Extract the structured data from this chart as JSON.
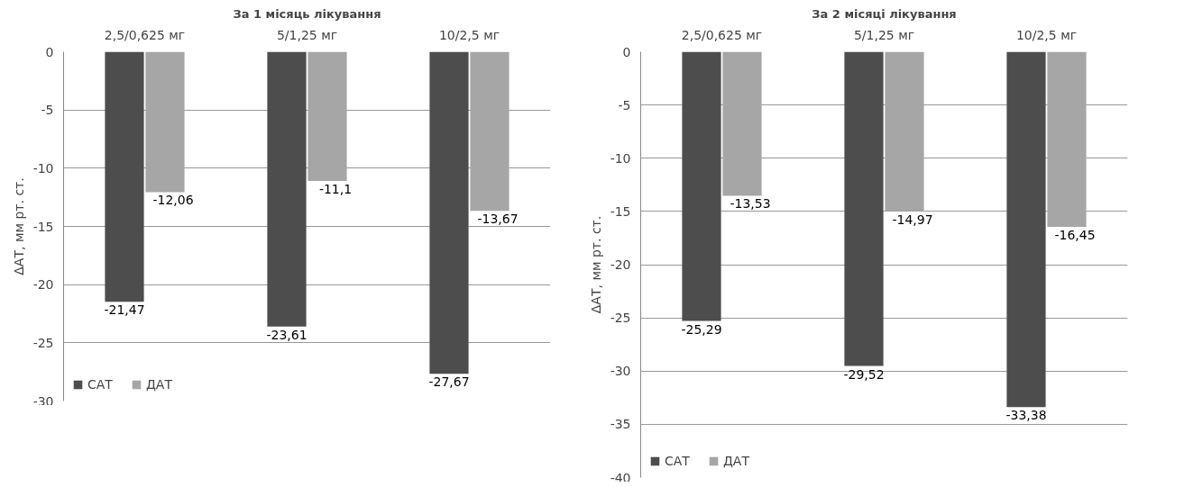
{
  "chart_data": [
    {
      "type": "bar",
      "title": "За 1 місяць лікування",
      "ylabel": "ΔАТ, мм рт. ст.",
      "categories": [
        "2,5/0,625 мг",
        "5/1,25 мг",
        "10/2,5 мг"
      ],
      "series": [
        {
          "name": "САТ",
          "color": "#4d4d4d",
          "values": [
            -21.47,
            -23.61,
            -27.67
          ],
          "value_labels": [
            "-21,47",
            "-23,61",
            "-27,67"
          ]
        },
        {
          "name": "ДАТ",
          "color": "#a6a6a6",
          "values": [
            -12.06,
            -11.1,
            -13.67
          ],
          "value_labels": [
            "-12,06",
            "-11,1",
            "-13,67"
          ]
        }
      ],
      "ylim": [
        -30,
        0
      ],
      "yticks": [
        -30,
        -25,
        -20,
        -15,
        -10,
        -5,
        0
      ],
      "grid": "y",
      "legend": "bottom left"
    },
    {
      "type": "bar",
      "title": "За 2 місяці лікування",
      "ylabel": "ΔАТ, мм рт. ст.",
      "categories": [
        "2,5/0,625 мг",
        "5/1,25 мг",
        "10/2,5 мг"
      ],
      "series": [
        {
          "name": "САТ",
          "color": "#4d4d4d",
          "values": [
            -25.29,
            -29.52,
            -33.38
          ],
          "value_labels": [
            "-25,29",
            "-29,52",
            "-33,38"
          ]
        },
        {
          "name": "ДАТ",
          "color": "#a6a6a6",
          "values": [
            -13.53,
            -14.97,
            -16.45
          ],
          "value_labels": [
            "-13,53",
            "-14,97",
            "-16,45"
          ]
        }
      ],
      "ylim": [
        -40,
        0
      ],
      "yticks": [
        -40,
        -35,
        -30,
        -25,
        -20,
        -15,
        -10,
        -5,
        0
      ],
      "grid": "y",
      "legend": "bottom left"
    }
  ]
}
